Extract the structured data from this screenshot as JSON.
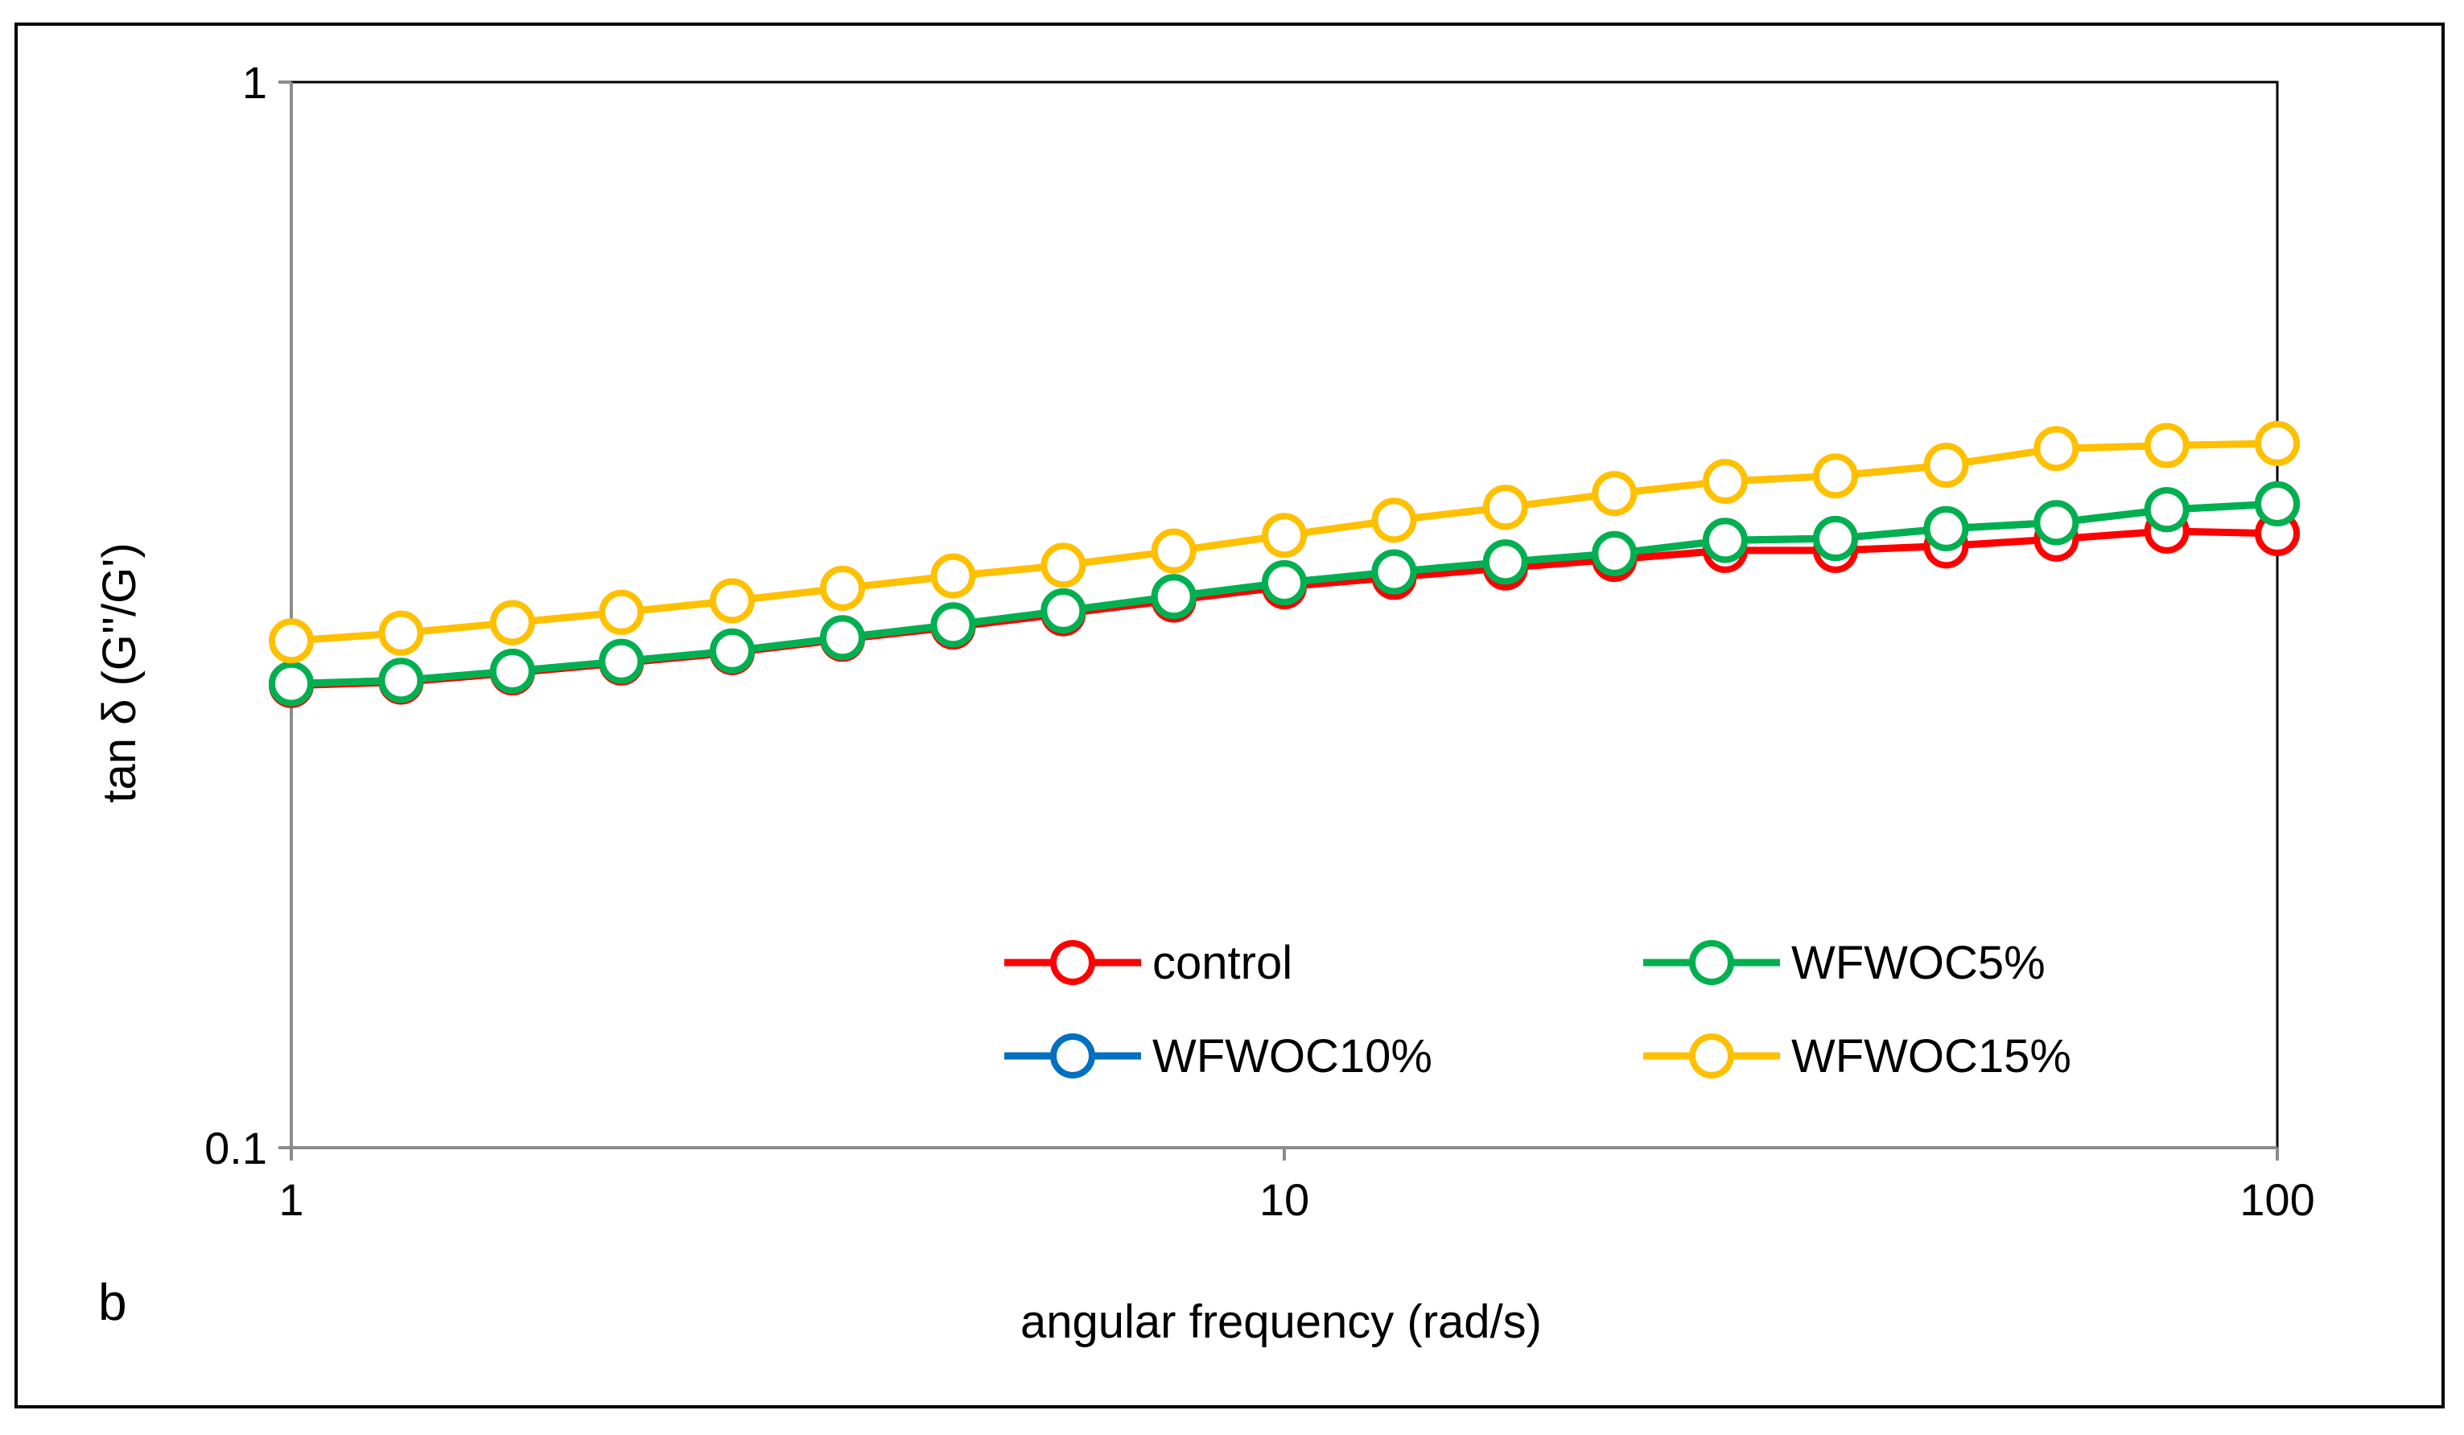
{
  "chart_data": {
    "type": "line",
    "panel_label": "b",
    "title": "",
    "xlabel": "angular frequency (rad/s)",
    "ylabel": "tan δ (G''/G')",
    "xscale": "log",
    "yscale": "log",
    "xlim": [
      1,
      100
    ],
    "ylim": [
      0.1,
      1
    ],
    "xticks": [
      1,
      10,
      100
    ],
    "xtick_labels": [
      "1",
      "10",
      "100"
    ],
    "yticks": [
      0.1,
      1
    ],
    "ytick_labels": [
      "0.1",
      "1"
    ],
    "grid": false,
    "legend_position": "bottom-right inside plot, two columns",
    "x": [
      1,
      1.29,
      1.67,
      2.15,
      2.78,
      3.59,
      4.64,
      5.99,
      7.74,
      10,
      12.9,
      16.7,
      21.5,
      27.8,
      35.9,
      46.4,
      59.9,
      77.4,
      100
    ],
    "series": [
      {
        "name": "control",
        "color": "#ff0000",
        "values": [
          0.2715,
          0.2735,
          0.279,
          0.285,
          0.2915,
          0.3,
          0.308,
          0.317,
          0.3265,
          0.336,
          0.343,
          0.35,
          0.3565,
          0.3635,
          0.3635,
          0.367,
          0.3725,
          0.379,
          0.377
        ]
      },
      {
        "name": "WFWOC10%",
        "color": "#0070c0",
        "values": [
          0.2725,
          0.2745,
          0.28,
          0.286,
          0.2925,
          0.301,
          0.3095,
          0.319,
          0.329,
          0.339,
          0.347,
          0.3545,
          0.361,
          0.3715,
          0.373,
          0.381,
          0.386,
          0.397,
          0.402
        ]
      },
      {
        "name": "WFWOC5%",
        "color": "#00b050",
        "values": [
          0.2725,
          0.2745,
          0.28,
          0.286,
          0.2925,
          0.301,
          0.3095,
          0.319,
          0.329,
          0.339,
          0.347,
          0.3545,
          0.361,
          0.3715,
          0.373,
          0.381,
          0.386,
          0.397,
          0.402
        ]
      },
      {
        "name": "WFWOC15%",
        "color": "#ffc000",
        "values": [
          0.299,
          0.304,
          0.311,
          0.318,
          0.326,
          0.335,
          0.344,
          0.352,
          0.363,
          0.3755,
          0.388,
          0.399,
          0.411,
          0.422,
          0.427,
          0.437,
          0.453,
          0.456,
          0.458
        ]
      }
    ],
    "legend_order": [
      "control",
      "WFWOC5%",
      "WFWOC10%",
      "WFWOC15%"
    ]
  }
}
